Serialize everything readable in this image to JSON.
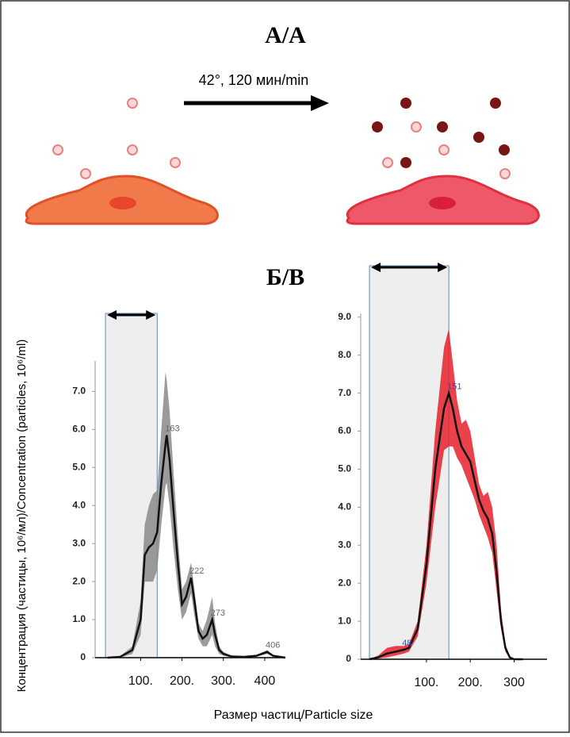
{
  "panel_a_title": "A/A",
  "arrow_label": "42°, 120 мин/min",
  "panel_b_title": "Б/В",
  "y_label": "Концентрация (частицы, 10⁶/мл)/Concentration (particles, 10⁶/ml)",
  "x_label": "Размер частиц/Particle size",
  "chart_data": [
    {
      "type": "line",
      "x": [
        20,
        50,
        80,
        100,
        110,
        120,
        130,
        140,
        150,
        160,
        163,
        170,
        180,
        190,
        200,
        210,
        222,
        230,
        240,
        250,
        260,
        273,
        280,
        290,
        300,
        320,
        350,
        380,
        406,
        420,
        450
      ],
      "series": [
        {
          "color": "#111111",
          "values": [
            0,
            0.02,
            0.2,
            1.0,
            2.7,
            2.9,
            3.0,
            3.3,
            4.6,
            5.6,
            5.85,
            5.2,
            3.8,
            2.5,
            1.4,
            1.6,
            2.1,
            1.5,
            0.7,
            0.5,
            0.6,
            1.0,
            0.6,
            0.2,
            0.1,
            0.03,
            0.02,
            0.05,
            0.15,
            0.05,
            0
          ]
        }
      ],
      "band": {
        "color": "#8a8a8a",
        "upper": [
          0,
          0.03,
          0.3,
          1.5,
          3.5,
          4.0,
          4.3,
          4.4,
          6.0,
          7.5,
          7.3,
          6.5,
          4.8,
          3.2,
          1.8,
          2.0,
          2.5,
          1.8,
          0.9,
          0.7,
          1.0,
          1.6,
          0.9,
          0.3,
          0.15,
          0.05,
          0.03,
          0.07,
          0.2,
          0.07,
          0
        ],
        "lower": [
          0,
          0,
          0.1,
          0.6,
          2.0,
          2.0,
          2.0,
          2.3,
          3.5,
          4.5,
          4.6,
          4.0,
          2.8,
          1.8,
          1.0,
          1.2,
          1.7,
          1.1,
          0.5,
          0.3,
          0.3,
          0.6,
          0.3,
          0.1,
          0.05,
          0.01,
          0.01,
          0.03,
          0.1,
          0.03,
          0
        ]
      },
      "region": [
        15,
        140
      ],
      "peaks": [
        163,
        222,
        273,
        406
      ],
      "xlim": [
        -10,
        450
      ],
      "xticks": [
        {
          "value": 100,
          "label": "100."
        },
        {
          "value": 200,
          "label": "200."
        },
        {
          "value": 300,
          "label": "300."
        },
        400
      ],
      "ylim": [
        0,
        7.8
      ],
      "yticks": [
        0,
        {
          "value": 1,
          "label": "1.0"
        },
        {
          "value": 2,
          "label": "2.0"
        },
        {
          "value": 3,
          "label": "3.0"
        },
        {
          "value": 4,
          "label": "4.0"
        },
        {
          "value": 5,
          "label": "5.0"
        },
        {
          "value": 6,
          "label": "6.0"
        },
        {
          "value": 7,
          "label": "7.0"
        }
      ],
      "grid": false
    },
    {
      "type": "line",
      "x": [
        -30,
        -10,
        10,
        30,
        48,
        60,
        80,
        100,
        120,
        140,
        151,
        160,
        170,
        180,
        190,
        200,
        210,
        220,
        230,
        240,
        250,
        260,
        270,
        280,
        290,
        300,
        320
      ],
      "series": [
        {
          "color": "#111111",
          "values": [
            0,
            0.05,
            0.15,
            0.2,
            0.25,
            0.3,
            0.8,
            2.5,
            5.0,
            6.6,
            7.0,
            6.6,
            6.0,
            5.6,
            5.4,
            5.2,
            4.7,
            4.2,
            3.9,
            3.7,
            3.3,
            2.3,
            1.0,
            0.3,
            0.05,
            0,
            0
          ]
        }
      ],
      "band": {
        "color": "#e8202a",
        "upper": [
          0,
          0.1,
          0.3,
          0.35,
          0.35,
          0.4,
          1.0,
          3.0,
          6.0,
          8.2,
          8.7,
          7.8,
          6.8,
          6.2,
          6.3,
          6.0,
          5.3,
          4.6,
          4.3,
          4.4,
          4.0,
          3.0,
          1.3,
          0.4,
          0.08,
          0,
          0
        ],
        "lower": [
          0,
          0.02,
          0.05,
          0.1,
          0.15,
          0.2,
          0.6,
          2.0,
          4.0,
          5.5,
          5.6,
          5.6,
          5.3,
          5.1,
          4.8,
          4.5,
          4.2,
          3.8,
          3.5,
          3.2,
          2.8,
          1.8,
          0.8,
          0.2,
          0.02,
          0,
          0
        ]
      },
      "region": [
        -30,
        151
      ],
      "peaks": [
        48,
        151
      ],
      "xlim": [
        -50,
        375
      ],
      "xticks": [
        {
          "value": 100,
          "label": "100."
        },
        {
          "value": 200,
          "label": "200."
        },
        300
      ],
      "ylim": [
        0,
        9.1
      ],
      "yticks": [
        0,
        {
          "value": 1,
          "label": "1.0"
        },
        {
          "value": 2,
          "label": "2.0"
        },
        {
          "value": 3,
          "label": "3.0"
        },
        {
          "value": 4,
          "label": "4.0"
        },
        {
          "value": 5,
          "label": "5.0"
        },
        {
          "value": 6,
          "label": "6.0"
        },
        {
          "value": 7,
          "label": "7.0"
        },
        {
          "value": 8,
          "label": "8.0"
        },
        {
          "value": 9,
          "label": "9.0"
        }
      ],
      "grid": false
    }
  ]
}
